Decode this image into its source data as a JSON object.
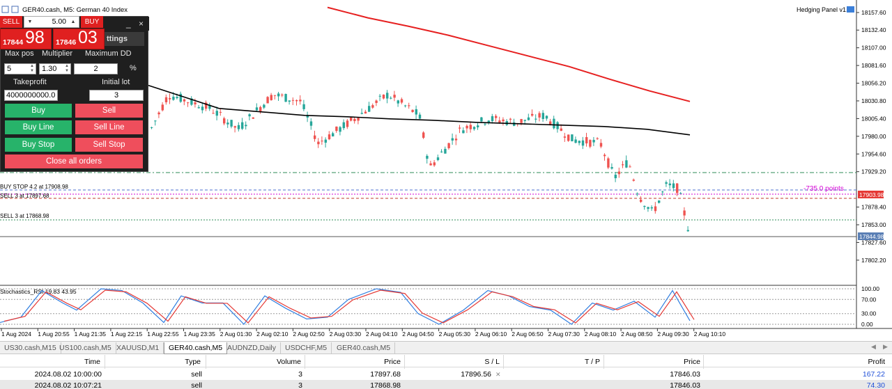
{
  "window": {
    "title": "GER40.cash, M5:  German 40 Index",
    "indicator_label": "Hedging Panel v1.2"
  },
  "price_axis": {
    "labels": [
      "18157.60",
      "18132.40",
      "18107.00",
      "18081.60",
      "18056.20",
      "18030.80",
      "18005.40",
      "17980.00",
      "17954.60",
      "17929.20",
      "17903.98",
      "17878.40",
      "17853.00",
      "17844.98",
      "17827.60",
      "17802.20"
    ],
    "current_bid": "17844.98",
    "level_tag": "17903.98"
  },
  "time_axis": {
    "labels": [
      "1 Aug 2024",
      "1 Aug 20:55",
      "1 Aug 21:35",
      "1 Aug 22:15",
      "1 Aug 22:55",
      "1 Aug 23:35",
      "2 Aug 01:30",
      "2 Aug 02:10",
      "2 Aug 02:50",
      "2 Aug 03:30",
      "2 Aug 04:10",
      "2 Aug 04:50",
      "2 Aug 05:30",
      "2 Aug 06:10",
      "2 Aug 06:50",
      "2 Aug 07:30",
      "2 Aug 08:10",
      "2 Aug 08:50",
      "2 Aug 09:30",
      "2 Aug 10:10"
    ]
  },
  "chart_lines": {
    "buy_stop": "BUY STOP 4.2 at 17908.98",
    "sell_1": "SELL 3 at 17897.68",
    "sell_2": "SELL 3 at 17868.98",
    "points": "-735.0 points"
  },
  "subwindow": {
    "title": "Stochastics_RSI 19.83 43.95",
    "levels": [
      "100.00",
      "70.00",
      "30.00",
      "0.00"
    ]
  },
  "chart_data": {
    "type": "line",
    "title": "GER40.cash, M5:  German 40 Index",
    "series": [
      {
        "values": [
          18080,
          18060,
          18040,
          18020,
          18015,
          18010,
          18008,
          18005,
          18003,
          18000,
          17998,
          17996,
          17994,
          17990,
          17982
        ]
      },
      {
        "values": [
          18165,
          18150,
          18138,
          18125,
          18110,
          18095,
          18080,
          18062,
          18045,
          18030
        ]
      }
    ],
    "ylim": [
      17790,
      18165
    ],
    "grid": false
  },
  "oneclick": {
    "sell_label": "SELL",
    "buy_label": "BUY",
    "volume": "5.00",
    "bid_small": "17844",
    "bid_big": "98",
    "ask_small": "17846",
    "ask_big": "03"
  },
  "panel": {
    "settings_tab": "ttings",
    "max_pos_label": "Max pos",
    "multiplier_label": "Multiplier",
    "max_dd_label": "Maximum DD",
    "max_pos_value": "5",
    "multiplier_value": "1.30",
    "max_dd_value": "2",
    "percent_label": "%",
    "takeprofit_label": "Takeprofit",
    "initial_lot_label": "Initial lot",
    "takeprofit_value": "4000000000.0",
    "initial_lot_value": "3",
    "buy_label": "Buy",
    "sell_label": "Sell",
    "buy_line_label": "Buy Line",
    "sell_line_label": "Sell Line",
    "buy_stop_label": "Buy Stop",
    "sell_stop_label": "Sell Stop",
    "close_all_label": "Close all orders",
    "minimize_icon": "_",
    "close_icon": "×"
  },
  "tabs": [
    "US30.cash,M15",
    "US100.cash,M5",
    "XAUUSD,M1",
    "GER40.cash,M5",
    "AUDNZD,Daily",
    "USDCHF,M5",
    "GER40.cash,M5"
  ],
  "table": {
    "headers": {
      "time": "Time",
      "type": "Type",
      "volume": "Volume",
      "price": "Price",
      "sl": "S / L",
      "tp": "T / P",
      "cur_price": "Price",
      "profit": "Profit"
    },
    "rows": [
      {
        "time": "2024.08.02 10:00:00",
        "type": "sell",
        "volume": "3",
        "price": "17897.68",
        "sl": "17896.56",
        "tp": "",
        "cur_price": "17846.03",
        "profit": "167.22"
      },
      {
        "time": "2024.08.02 10:07:21",
        "type": "sell",
        "volume": "3",
        "price": "17868.98",
        "sl": "",
        "tp": "",
        "cur_price": "17846.03",
        "profit": "74.30"
      }
    ]
  },
  "colors": {
    "bull": "#26a69a",
    "bear": "#ef5350",
    "ma_fast": "#000000",
    "ma_slow": "#e62020",
    "points_text": "#d400d4",
    "panel_bg": "#1f1f1f",
    "green_btn": "#27b36a",
    "red_btn": "#ef4e5c"
  }
}
